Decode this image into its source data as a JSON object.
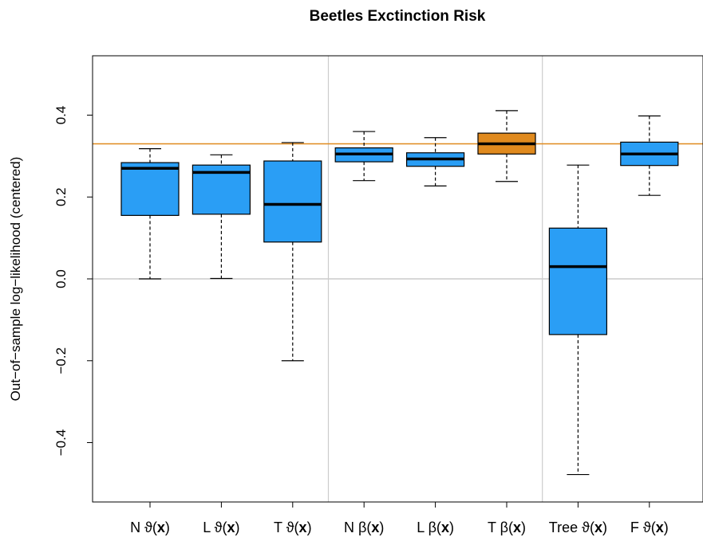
{
  "chart_data": {
    "type": "box",
    "title": "Beetles Exctinction Risk",
    "ylabel": "Out−of−sample log−likelihood (centered)",
    "xlabel": "",
    "ylim": [
      -0.545,
      0.545
    ],
    "yticks": [
      -0.4,
      -0.2,
      0.0,
      0.2,
      0.4
    ],
    "ytick_labels": [
      "−0.4",
      "−0.2",
      "0.0",
      "0.2",
      "0.4"
    ],
    "reference_lines": {
      "horizontal": [
        {
          "y": 0.0,
          "color": "#cccccc"
        },
        {
          "y": 0.33,
          "color": "#e08a1e"
        }
      ],
      "vertical_separators_after_index": [
        2,
        5
      ]
    },
    "colors": {
      "box_default": "#2a9ef5",
      "box_highlight": "#e08a1e",
      "median": "#000000",
      "separator": "#cccccc"
    },
    "boxes": [
      {
        "label": {
          "prefix": "N ",
          "symbol": "ϑ",
          "arg": "x"
        },
        "whisker_low": 0.0,
        "q1": 0.155,
        "median": 0.27,
        "q3": 0.284,
        "whisker_high": 0.318,
        "highlight": false
      },
      {
        "label": {
          "prefix": "L ",
          "symbol": "ϑ",
          "arg": "x"
        },
        "whisker_low": 0.001,
        "q1": 0.158,
        "median": 0.26,
        "q3": 0.278,
        "whisker_high": 0.303,
        "highlight": false
      },
      {
        "label": {
          "prefix": "T ",
          "symbol": "ϑ",
          "arg": "x"
        },
        "whisker_low": -0.2,
        "q1": 0.09,
        "median": 0.182,
        "q3": 0.288,
        "whisker_high": 0.333,
        "highlight": false
      },
      {
        "label": {
          "prefix": "N ",
          "symbol": "β",
          "arg": "x"
        },
        "whisker_low": 0.24,
        "q1": 0.286,
        "median": 0.305,
        "q3": 0.32,
        "whisker_high": 0.36,
        "highlight": false
      },
      {
        "label": {
          "prefix": "L ",
          "symbol": "β",
          "arg": "x"
        },
        "whisker_low": 0.227,
        "q1": 0.275,
        "median": 0.293,
        "q3": 0.308,
        "whisker_high": 0.345,
        "highlight": false
      },
      {
        "label": {
          "prefix": "T ",
          "symbol": "β",
          "arg": "x"
        },
        "whisker_low": 0.238,
        "q1": 0.305,
        "median": 0.33,
        "q3": 0.356,
        "whisker_high": 0.411,
        "highlight": true
      },
      {
        "label": {
          "prefix": "Tree ",
          "symbol": "ϑ",
          "arg": "x"
        },
        "whisker_low": -0.478,
        "q1": -0.136,
        "median": 0.03,
        "q3": 0.124,
        "whisker_high": 0.278,
        "highlight": false
      },
      {
        "label": {
          "prefix": "F ",
          "symbol": "ϑ",
          "arg": "x"
        },
        "whisker_low": 0.204,
        "q1": 0.277,
        "median": 0.305,
        "q3": 0.334,
        "whisker_high": 0.398,
        "highlight": false
      }
    ]
  }
}
